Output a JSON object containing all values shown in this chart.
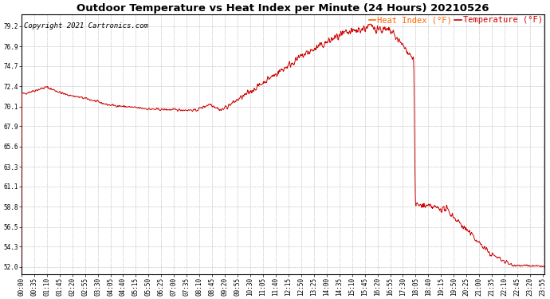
{
  "title": "Outdoor Temperature vs Heat Index per Minute (24 Hours) 20210526",
  "copyright_text": "Copyright 2021 Cartronics.com",
  "legend_heat_index": "Heat Index (°F)",
  "legend_temperature": "Temperature (°F)",
  "legend_heat_index_color": "#ff6600",
  "legend_temperature_color": "#cc0000",
  "line_color": "#cc0000",
  "background_color": "#ffffff",
  "grid_color": "#bbbbbb",
  "title_color": "#000000",
  "copyright_color": "#000000",
  "yticks": [
    52.0,
    54.3,
    56.5,
    58.8,
    61.1,
    63.3,
    65.6,
    67.9,
    70.1,
    72.4,
    74.7,
    76.9,
    79.2
  ],
  "ylim": [
    51.2,
    80.5
  ],
  "num_minutes": 1440,
  "xtick_interval": 35,
  "title_fontsize": 9.5,
  "copyright_fontsize": 6.5,
  "legend_fontsize": 7.5,
  "axis_fontsize": 5.5,
  "figsize": [
    6.9,
    3.75
  ],
  "dpi": 100
}
